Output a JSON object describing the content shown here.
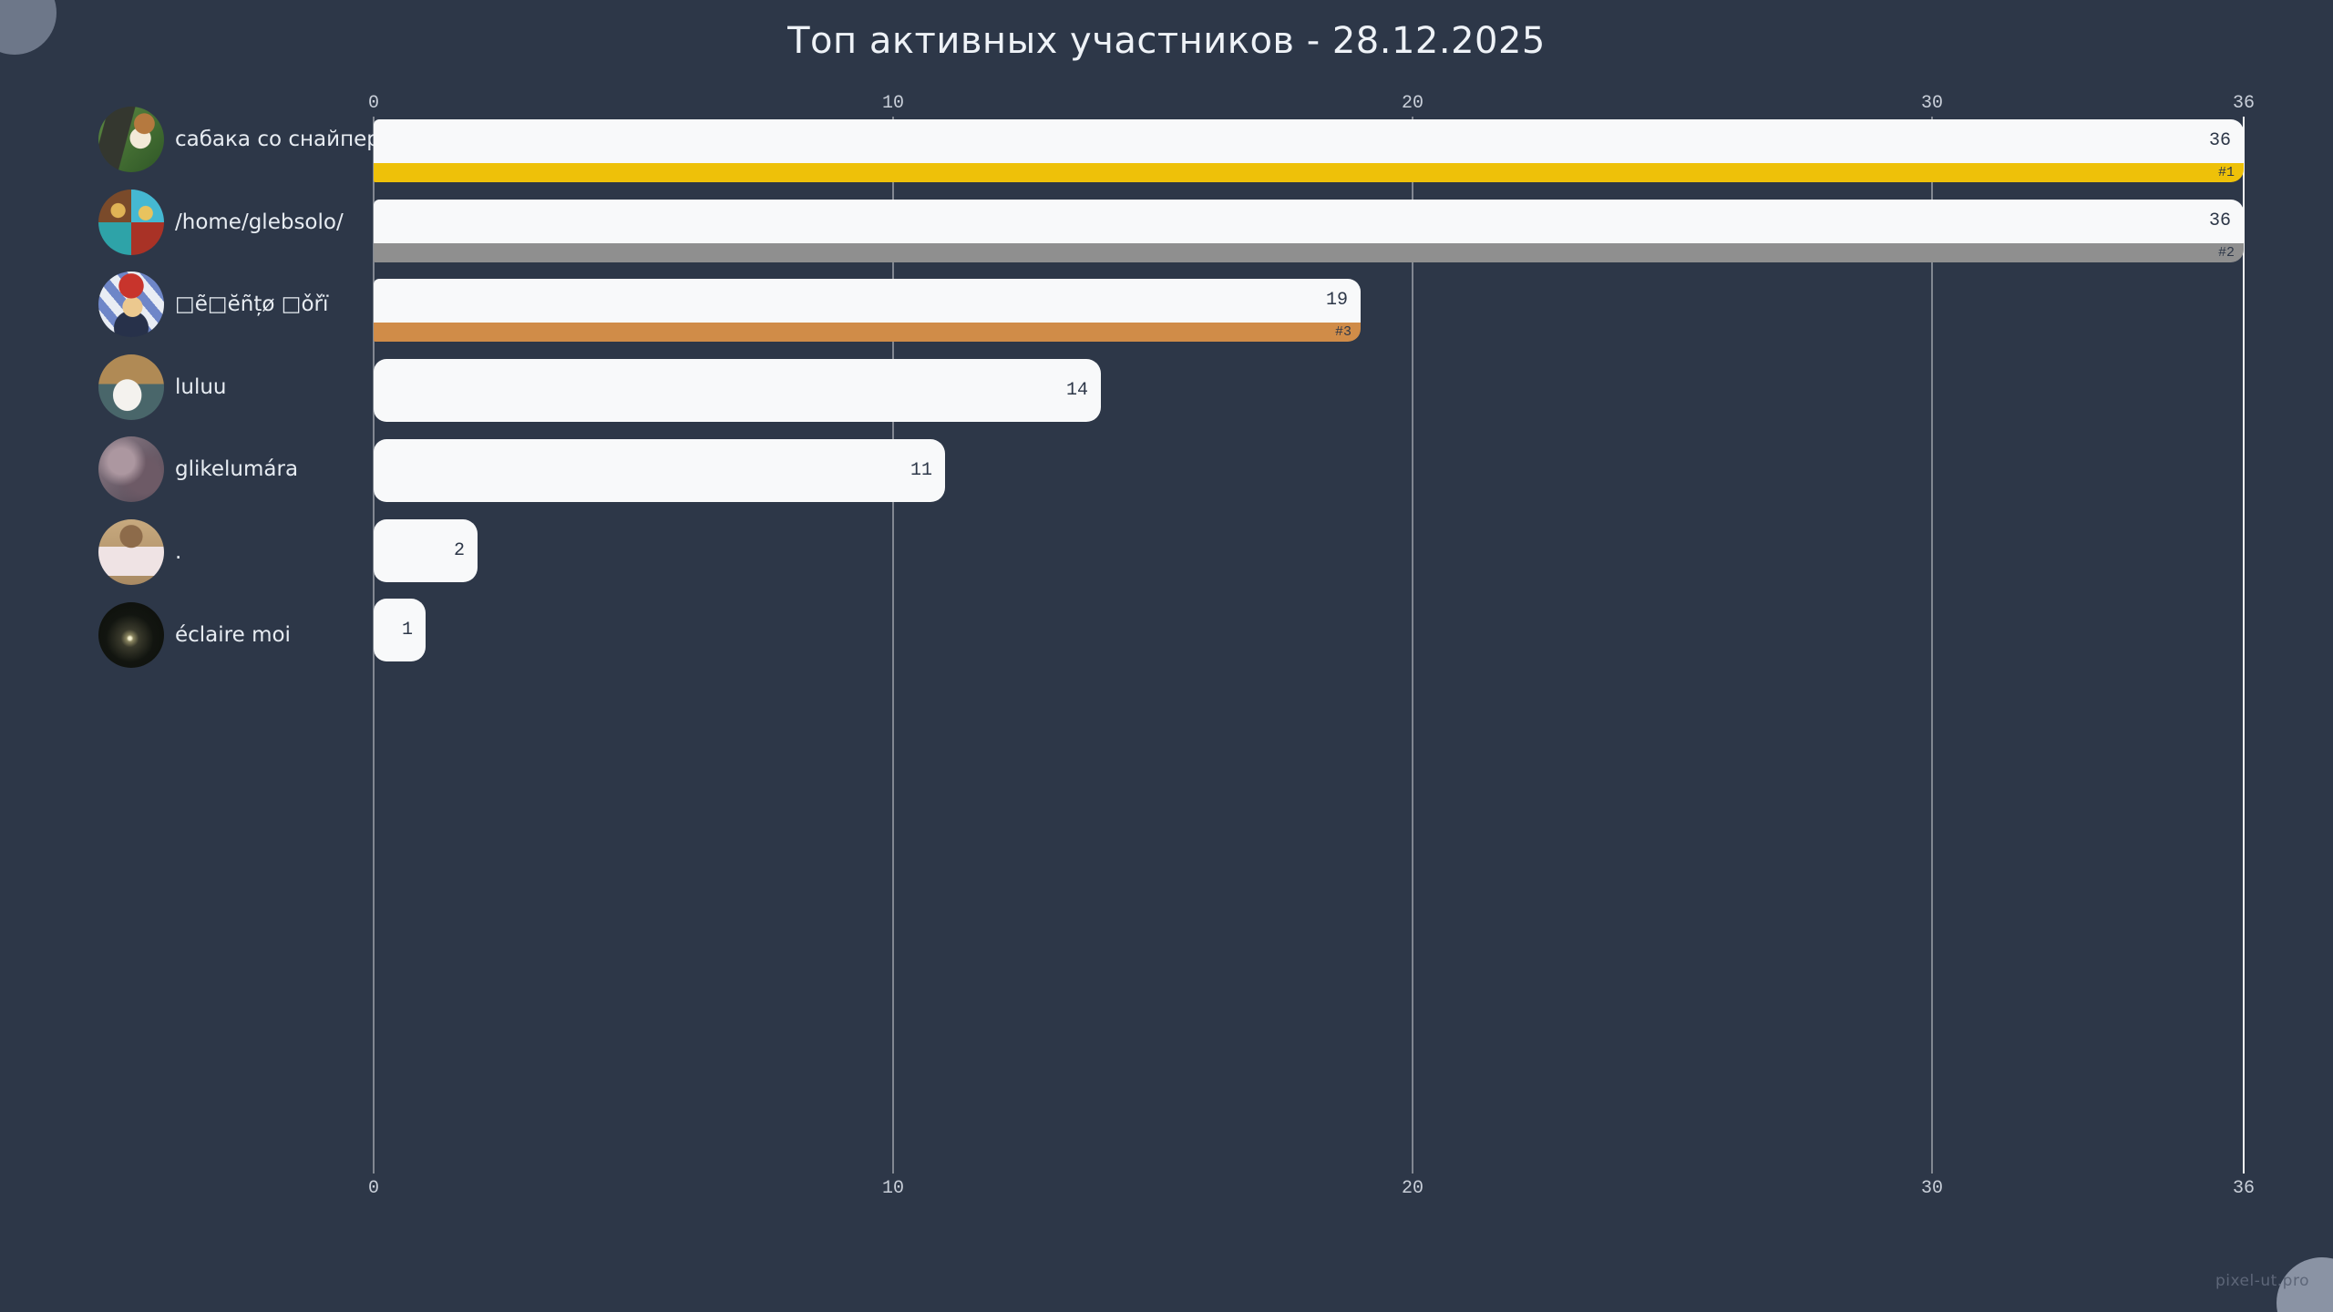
{
  "title": "Топ активных участников - 28.12.2025",
  "watermark": "pixel-ut.pro",
  "colors": {
    "background": "#2d3748",
    "bar": "#f8f9fa",
    "rank_gold": "#eec109",
    "rank_silver": "#8f8f8f",
    "rank_bronze": "#d08c48",
    "title_text": "#eef2f7",
    "axis_text": "#c9cfd9",
    "value_text": "#2d3748",
    "watermark_text": "#5d6678"
  },
  "chart_data": {
    "type": "bar",
    "orientation": "horizontal",
    "title": "Топ активных участников - 28.12.2025",
    "xlabel": "",
    "ylabel": "",
    "xlim": [
      0,
      36
    ],
    "x_ticks": [
      0,
      10,
      20,
      30,
      36
    ],
    "grid": true,
    "legend": "none",
    "categories": [
      "сабака со снайпер...",
      "/home/glebsolo/",
      "□ẽ□ĕñțø □ǒřï",
      "luluu",
      "glikelumára",
      ".",
      "éclaire moi"
    ],
    "values": [
      36,
      36,
      19,
      14,
      11,
      2,
      1
    ],
    "ranks": [
      "#1",
      "#2",
      "#3",
      "",
      "",
      "",
      ""
    ],
    "bar_color": "#f8f9fa",
    "rank_colors": [
      "#eec109",
      "#8f8f8f",
      "#d08c48"
    ],
    "avatars": [
      "avatar-dog-with-sniper-rifle",
      "avatar-minecraft-skin-collage",
      "avatar-minecraft-santa-character",
      "avatar-white-cartoon-cat",
      "avatar-blurred-portrait-collage",
      "avatar-monkey-holding-sign",
      "avatar-night-moon-photo"
    ]
  }
}
